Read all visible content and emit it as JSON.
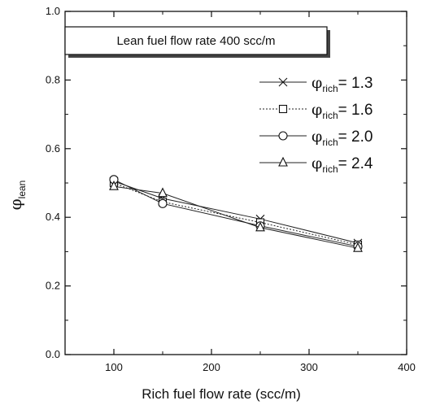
{
  "chart_data": {
    "type": "line",
    "title": "Lean fuel flow rate 400 scc/m",
    "xlabel": "Rich fuel flow rate (scc/m)",
    "ylabel_symbol": "φ",
    "ylabel_sub": "lean",
    "xlim": [
      50,
      400
    ],
    "ylim": [
      0.0,
      1.0
    ],
    "xticks": [
      100,
      200,
      300,
      400
    ],
    "xtick_labels": [
      "100",
      "200",
      "300",
      "400"
    ],
    "yticks": [
      0.0,
      0.2,
      0.4,
      0.6,
      0.8,
      1.0
    ],
    "ytick_labels": [
      "0.0",
      "0.2",
      "0.4",
      "0.6",
      "0.8",
      "1.0"
    ],
    "grid": false,
    "legend_position": "top-right",
    "x": [
      100,
      150,
      250,
      350
    ],
    "series": [
      {
        "symbol": "φ",
        "sub": "rich",
        "value_label": "= 1.3",
        "marker": "x",
        "dash": "",
        "values": [
          0.505,
          0.455,
          0.395,
          0.325
        ]
      },
      {
        "symbol": "φ",
        "sub": "rich",
        "value_label": "= 1.6",
        "marker": "square",
        "dash": "2,2",
        "values": [
          0.5,
          0.445,
          0.385,
          0.32
        ]
      },
      {
        "symbol": "φ",
        "sub": "rich",
        "value_label": "= 2.0",
        "marker": "circle",
        "dash": "",
        "values": [
          0.51,
          0.44,
          0.375,
          0.315
        ]
      },
      {
        "symbol": "φ",
        "sub": "rich",
        "value_label": "= 2.4",
        "marker": "triangle",
        "dash": "",
        "values": [
          0.49,
          0.47,
          0.37,
          0.31
        ]
      }
    ]
  }
}
